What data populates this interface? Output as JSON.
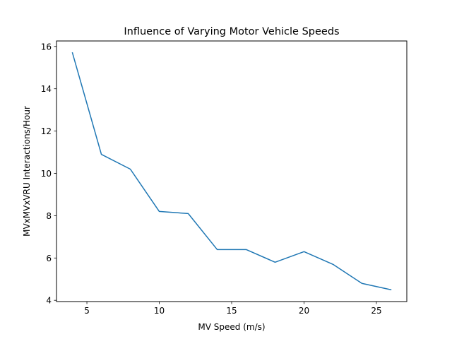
{
  "chart_data": {
    "type": "line",
    "title": "Influence of Varying Motor Vehicle Speeds",
    "xlabel": "MV Speed (m/s)",
    "ylabel": "MVxMVxVRU Interactions/Hour",
    "xlim": [
      2.9,
      27.1
    ],
    "ylim": [
      3.94,
      16.26
    ],
    "xticks": [
      5,
      10,
      15,
      20,
      25
    ],
    "yticks": [
      4,
      6,
      8,
      10,
      12,
      14,
      16
    ],
    "grid": false,
    "series": [
      {
        "color": "#1f77b4",
        "x": [
          4,
          6,
          8,
          10,
          12,
          14,
          16,
          18,
          20,
          22,
          24,
          26
        ],
        "y": [
          15.7,
          10.9,
          10.2,
          8.2,
          8.1,
          6.4,
          6.4,
          5.8,
          6.3,
          5.7,
          4.8,
          4.5
        ]
      }
    ]
  }
}
